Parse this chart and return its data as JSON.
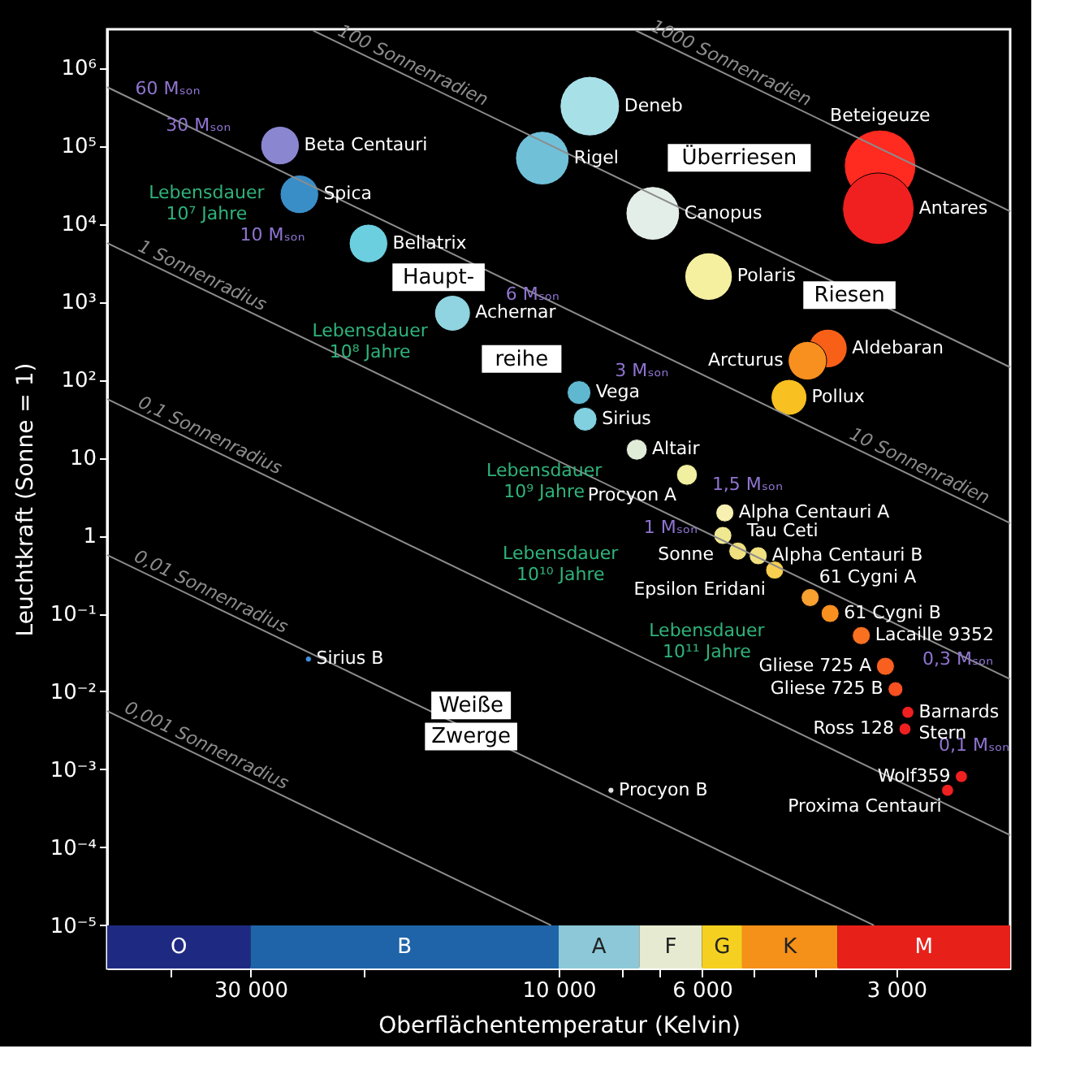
{
  "chart_data": {
    "type": "bubble",
    "xlabel": "Oberflächentemperatur (Kelvin)",
    "ylabel": "Leuchtkraft (Sonne = 1)",
    "log": "xy",
    "grid": false,
    "xlim": [
      50000,
      2000
    ],
    "ylim": [
      2.8e-06,
      3100000
    ],
    "xticks": [
      {
        "value": 40000,
        "label": null
      },
      {
        "value": 30000,
        "label": "30 000"
      },
      {
        "value": 20000,
        "label": null
      },
      {
        "value": 10000,
        "label": "10 000"
      },
      {
        "value": 8000,
        "label": null
      },
      {
        "value": 7000,
        "label": null
      },
      {
        "value": 6000,
        "label": "6 000"
      },
      {
        "value": 5000,
        "label": null
      },
      {
        "value": 4000,
        "label": null
      },
      {
        "value": 3000,
        "label": "3 000"
      }
    ],
    "yticks": [
      {
        "value": 1000000,
        "label": "10⁶"
      },
      {
        "value": 100000,
        "label": "10⁵"
      },
      {
        "value": 10000,
        "label": "10⁴"
      },
      {
        "value": 1000,
        "label": "10³"
      },
      {
        "value": 100,
        "label": "10²"
      },
      10,
      1,
      {
        "value": 0.1,
        "label": "10⁻¹"
      },
      {
        "value": 0.01,
        "label": "10⁻²"
      },
      {
        "value": 0.001,
        "label": "10⁻³"
      },
      {
        "value": 0.0001,
        "label": "10⁻⁴"
      },
      {
        "value": 1e-05,
        "label": "10⁻⁵"
      }
    ],
    "series": [
      {
        "marker": "circle",
        "x": [
          27000,
          25200,
          19700,
          14600,
          8950,
          10600,
          7150,
          5860,
          3180,
          3200,
          3830,
          4120,
          4400,
          9300,
          9100,
          7570,
          6330,
          5530,
          5570,
          5280,
          4910,
          4630,
          4080,
          3800,
          3400,
          3120,
          3010,
          2880,
          2910,
          2380,
          2500,
          8300,
          24400
        ],
        "values": [
          100000,
          23700,
          5550,
          708,
          320000,
          69000,
          13500,
          2090,
          55000,
          15500,
          250,
          174,
          59,
          68,
          31,
          12.6,
          6,
          1.95,
          1,
          0.63,
          0.55,
          0.36,
          0.16,
          0.1,
          0.052,
          0.021,
          0.0107,
          0.0054,
          0.0033,
          0.00081,
          0.00054,
          0.00054,
          0.026
        ],
        "sizes": [
          0.29,
          0.29,
          0.29,
          0.25,
          0.69,
          0.56,
          0.56,
          0.44,
          1,
          1,
          0.29,
          0.29,
          0.25,
          0.11,
          0.11,
          0.085,
          0.085,
          0.063,
          0.063,
          0.063,
          0.063,
          0.063,
          0.063,
          0.063,
          0.063,
          0.063,
          0.043,
          0.028,
          0.028,
          0.028,
          0.028,
          0.007,
          0.007
        ],
        "colors": [
          "#8a86d0",
          "#3a8ec8",
          "#6ccfe0",
          "#8fd4e0",
          "#a8e0e8",
          "#70c0d8",
          "#e4eee8",
          "#f5f0a0",
          "#ff2a20",
          "#f02020",
          "#f86018",
          "#f89020",
          "#f8c020",
          "#60b8d0",
          "#80d0e0",
          "#e0ecd8",
          "#f0f0a0",
          "#f8f0b0",
          "#f0e890",
          "#f0e080",
          "#f0e080",
          "#f8d050",
          "#f8a030",
          "#f89020",
          "#f87020",
          "#f86020",
          "#f85020",
          "#f02020",
          "#f02020",
          "#f02020",
          "#f02020",
          "#e0e0e0",
          "#4090e0"
        ]
      },
      {
        "type": "line",
        "name": "1000 Sonnenradien",
        "color": "#8c8c8c",
        "x": [
          7600,
          2000
        ],
        "values": [
          2990000,
          14360
        ]
      },
      {
        "type": "line",
        "name": "100 Sonnenradien",
        "color": "#8c8c8c",
        "x": [
          24000,
          2000
        ],
        "values": [
          2980000,
          143.6
        ]
      },
      {
        "type": "line",
        "name": "10 Sonnenradien",
        "color": "#8c8c8c",
        "x": [
          50000,
          2000
        ],
        "values": [
          561000,
          1.436
        ]
      },
      {
        "type": "line",
        "name": "1 Sonnenradius",
        "color": "#8c8c8c",
        "x": [
          50000,
          2000
        ],
        "values": [
          5610,
          0.01436
        ]
      },
      {
        "type": "line",
        "name": "0,1 Sonnenradius",
        "color": "#8c8c8c",
        "x": [
          50000,
          2000
        ],
        "values": [
          56.1,
          0.0001436
        ]
      },
      {
        "type": "line",
        "name": "0,01 Sonnenradius",
        "color": "#8c8c8c",
        "x": [
          50000,
          3250
        ],
        "values": [
          0.561,
          1e-05
        ]
      },
      {
        "type": "line",
        "name": "0,001 Sonnenradius",
        "color": "#8c8c8c",
        "x": [
          50000,
          10275
        ],
        "values": [
          0.00561,
          1e-05
        ]
      }
    ],
    "bands": [
      {
        "axis": "x",
        "from": 50000,
        "to": 30000,
        "label": "O",
        "color": "#1e2a82"
      },
      {
        "axis": "x",
        "from": 30000,
        "to": 10000,
        "label": "B",
        "color": "#1f64a8"
      },
      {
        "axis": "x",
        "from": 10000,
        "to": 7500,
        "label": "A",
        "color": "#8cc8d8"
      },
      {
        "axis": "x",
        "from": 7500,
        "to": 6000,
        "label": "F",
        "color": "#e6ead0"
      },
      {
        "axis": "x",
        "from": 6000,
        "to": 5200,
        "label": "G",
        "color": "#f5d020"
      },
      {
        "axis": "x",
        "from": 5200,
        "to": 3700,
        "label": "K",
        "color": "#f59018"
      },
      {
        "axis": "x",
        "from": 3700,
        "to": 2000,
        "label": "M",
        "color": "#e8201a"
      }
    ],
    "annotations": [
      "60 Mₛₒₙ",
      "30 Mₛₒₙ",
      "10 Mₛₒₙ",
      "6 Mₛₒₙ",
      "3 Mₛₒₙ",
      "1,5 Mₛₒₙ",
      "1 Mₛₒₙ",
      "0,3 Mₛₒₙ",
      "0,1 Mₛₒₙ",
      "Lebensdauer\n10⁷ Jahre",
      "Lebensdauer\n10⁸ Jahre",
      "Lebensdauer\n10⁹ Jahre",
      "Lebensdauer\n10¹⁰ Jahre",
      "Lebensdauer\n10¹¹ Jahre",
      "Überriesen",
      "Riesen",
      "Haupt-",
      "reihe",
      "Weiße",
      "Zwerge",
      {
        "text": "Beta Centauri",
        "x": 27000,
        "y": 100000
      },
      {
        "text": "Spica",
        "x": 25200,
        "y": 23700
      },
      {
        "text": "Bellatrix",
        "x": 19700,
        "y": 5550
      },
      {
        "text": "Achernar",
        "x": 14600,
        "y": 708
      },
      {
        "text": "Deneb",
        "x": 8950,
        "y": 320000
      },
      {
        "text": "Rigel",
        "x": 10600,
        "y": 69000
      },
      {
        "text": "Canopus",
        "x": 7150,
        "y": 13500
      },
      {
        "text": "Polaris",
        "x": 5860,
        "y": 2090
      },
      {
        "text": "Beteigeuze",
        "x": 3180,
        "y": 55000
      },
      {
        "text": "Antares",
        "x": 3200,
        "y": 15500
      },
      {
        "text": "Aldebaran",
        "x": 3830,
        "y": 250
      },
      {
        "text": "Arcturus",
        "x": 4120,
        "y": 174
      },
      {
        "text": "Pollux",
        "x": 4400,
        "y": 59
      },
      {
        "text": "Vega",
        "x": 9300,
        "y": 68
      },
      {
        "text": "Sirius",
        "x": 9100,
        "y": 31
      },
      {
        "text": "Altair",
        "x": 7570,
        "y": 12.6
      },
      {
        "text": "Procyon A",
        "x": 6330,
        "y": 6
      },
      {
        "text": "Alpha Centauri A",
        "x": 5530,
        "y": 1.95
      },
      {
        "text": "Sonne",
        "x": 5570,
        "y": 1
      },
      {
        "text": "Tau Ceti",
        "x": 5280,
        "y": 0.63
      },
      {
        "text": "Alpha Centauri B",
        "x": 4910,
        "y": 0.55
      },
      {
        "text": "Epsilon Eridani",
        "x": 4630,
        "y": 0.36
      },
      {
        "text": "61 Cygni A",
        "x": 4080,
        "y": 0.16
      },
      {
        "text": "61 Cygni B",
        "x": 3800,
        "y": 0.1
      },
      {
        "text": "Lacaille 9352",
        "x": 3400,
        "y": 0.052
      },
      {
        "text": "Gliese 725 A",
        "x": 3120,
        "y": 0.021
      },
      {
        "text": "Gliese 725 B",
        "x": 3010,
        "y": 0.0107
      },
      {
        "text": "Barnards\nStern",
        "x": 2880,
        "y": 0.0054
      },
      {
        "text": "Ross 128",
        "x": 2910,
        "y": 0.0033
      },
      {
        "text": "Wolf359",
        "x": 2380,
        "y": 0.00081
      },
      {
        "text": "Proxima Centauri",
        "x": 2500,
        "y": 0.00054
      },
      {
        "text": "Procyon B",
        "x": 8300,
        "y": 0.00054
      },
      {
        "text": "Sirius B",
        "x": 24400,
        "y": 0.026
      }
    ]
  }
}
